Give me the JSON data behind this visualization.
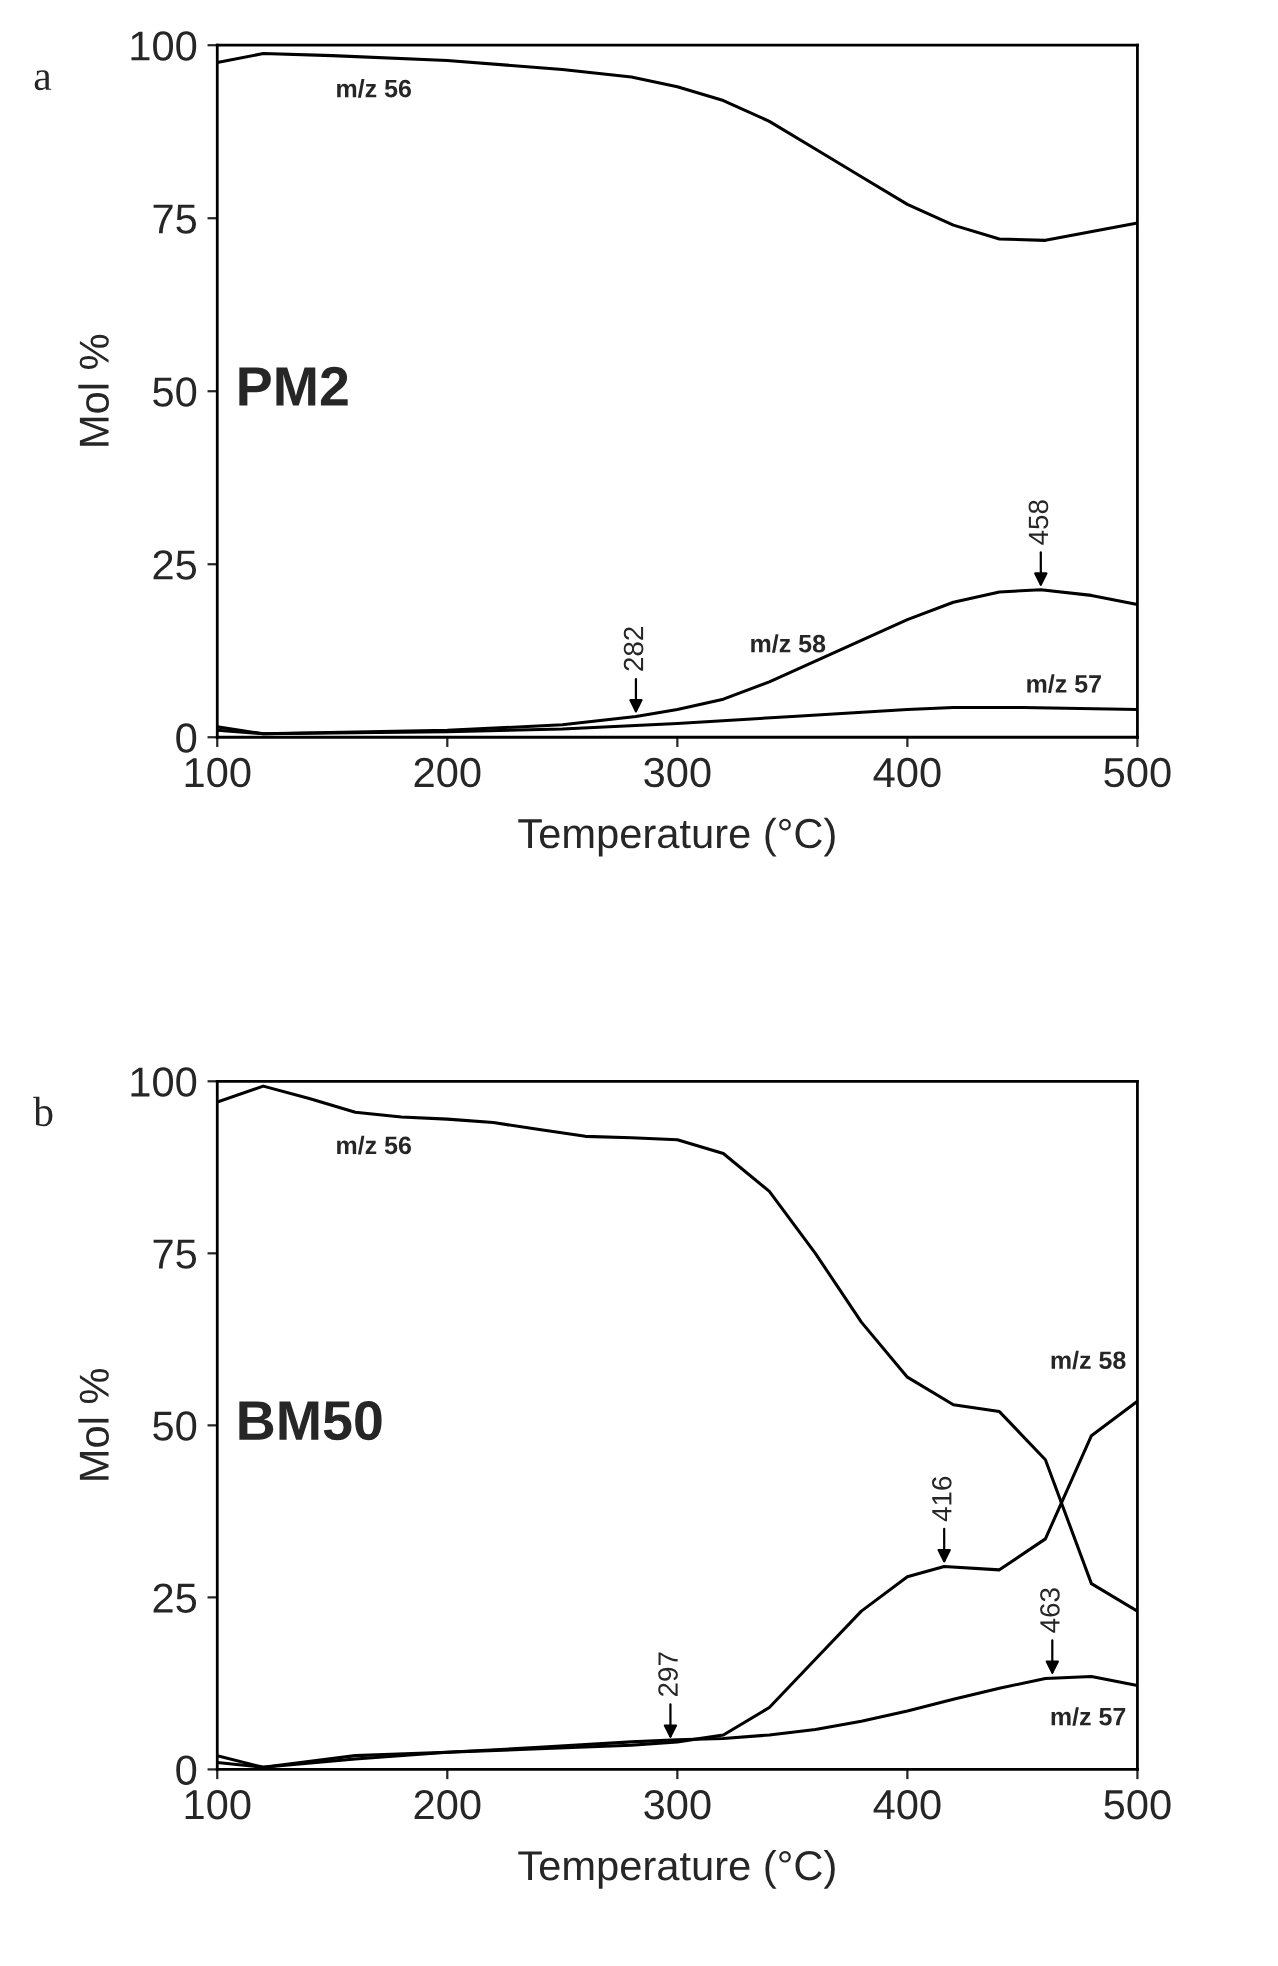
{
  "chart_data": [
    {
      "type": "line",
      "title": "a",
      "subtitle": "PM2",
      "xlabel": "Temperature (°C)",
      "ylabel": "Mol %",
      "xlim": [
        100,
        500
      ],
      "ylim": [
        0,
        100
      ],
      "xticks": [
        100,
        200,
        300,
        400,
        500
      ],
      "yticks": [
        0,
        25,
        50,
        75,
        100
      ],
      "grid": false,
      "legend": false,
      "series": [
        {
          "name": "m/z 56",
          "color": "#000000",
          "x": [
            100,
            120,
            150,
            200,
            250,
            280,
            300,
            320,
            340,
            360,
            380,
            400,
            420,
            440,
            460,
            500
          ],
          "values": [
            97.5,
            98.8,
            98.5,
            97.8,
            96.5,
            95.4,
            94,
            92,
            89,
            85,
            81,
            77,
            74,
            72,
            71.8,
            74.3
          ]
        },
        {
          "name": "m/z 58",
          "color": "#000000",
          "x": [
            100,
            120,
            200,
            250,
            282,
            300,
            320,
            340,
            360,
            380,
            400,
            420,
            440,
            458,
            480,
            500
          ],
          "values": [
            1,
            0.5,
            1,
            1.8,
            3,
            4,
            5.5,
            8,
            11,
            14,
            17,
            19.5,
            21,
            21.3,
            20.5,
            19.2
          ]
        },
        {
          "name": "m/z 57",
          "color": "#000000",
          "x": [
            100,
            120,
            200,
            250,
            300,
            350,
            400,
            420,
            450,
            500
          ],
          "values": [
            1.5,
            0.5,
            0.8,
            1.2,
            2,
            3,
            4,
            4.3,
            4.3,
            4
          ]
        }
      ],
      "annotations": [
        {
          "text": "282",
          "x": 282,
          "y": 3
        },
        {
          "text": "458",
          "x": 458,
          "y": 21.3
        }
      ]
    },
    {
      "type": "line",
      "title": "b",
      "subtitle": "BM50",
      "xlabel": "Temperature (°C)",
      "ylabel": "Mol %",
      "xlim": [
        100,
        500
      ],
      "ylim": [
        0,
        100
      ],
      "xticks": [
        100,
        200,
        300,
        400,
        500
      ],
      "yticks": [
        0,
        25,
        50,
        75,
        100
      ],
      "grid": false,
      "legend": false,
      "series": [
        {
          "name": "m/z 56",
          "color": "#000000",
          "x": [
            100,
            120,
            140,
            160,
            180,
            200,
            220,
            240,
            260,
            280,
            300,
            320,
            340,
            360,
            380,
            400,
            420,
            440,
            460,
            480,
            500
          ],
          "values": [
            97,
            99.3,
            97.5,
            95.5,
            94.8,
            94.5,
            94,
            93,
            92,
            91.8,
            91.5,
            89.5,
            84,
            75,
            65,
            57,
            53,
            52,
            45,
            27,
            23
          ]
        },
        {
          "name": "m/z 58",
          "color": "#000000",
          "x": [
            100,
            120,
            160,
            200,
            240,
            280,
            300,
            320,
            340,
            360,
            380,
            400,
            416,
            440,
            460,
            480,
            500
          ],
          "values": [
            1,
            0.3,
            2,
            2.5,
            3,
            3.5,
            4,
            5,
            9,
            16,
            23,
            28,
            29.5,
            29,
            33.5,
            48.5,
            53.5
          ]
        },
        {
          "name": "m/z 57",
          "color": "#000000",
          "x": [
            100,
            120,
            160,
            200,
            240,
            280,
            300,
            320,
            340,
            360,
            380,
            400,
            420,
            440,
            460,
            480,
            500
          ],
          "values": [
            2,
            0.3,
            1.5,
            2.5,
            3.2,
            4,
            4.3,
            4.5,
            5,
            5.8,
            7,
            8.5,
            10.2,
            11.8,
            13.2,
            13.5,
            12.2
          ]
        }
      ],
      "annotations": [
        {
          "text": "297",
          "x": 297,
          "y": 4
        },
        {
          "text": "416",
          "x": 416,
          "y": 29.5
        },
        {
          "text": "463",
          "x": 463,
          "y": 13.3
        }
      ]
    }
  ]
}
